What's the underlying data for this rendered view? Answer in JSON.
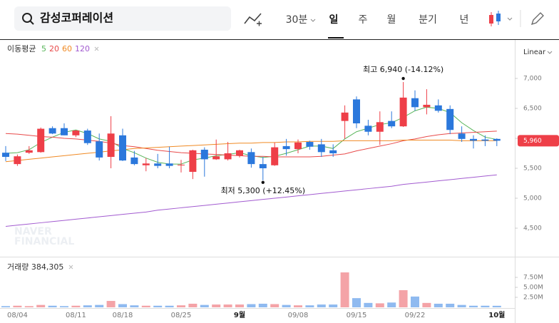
{
  "toolbar": {
    "search": "감성코퍼레이션",
    "intervals": [
      "30분",
      "일",
      "주",
      "월",
      "분기",
      "년"
    ],
    "selected": 1,
    "scale": "Linear"
  },
  "watermark": [
    "NAVER",
    "FINANCIAL"
  ],
  "chart_data": [
    {
      "type": "candlestick",
      "ma_label": "이동평균",
      "categories": [
        null,
        "08/04",
        null,
        null,
        null,
        null,
        "08/11",
        null,
        null,
        null,
        "08/18",
        null,
        null,
        null,
        null,
        "08/25",
        null,
        null,
        null,
        null,
        "9월",
        null,
        null,
        null,
        null,
        "09/08",
        null,
        null,
        null,
        null,
        "09/15",
        null,
        null,
        null,
        null,
        "09/22",
        null,
        null,
        null,
        null,
        null,
        null,
        "10월"
      ],
      "open": [
        5760,
        5570,
        5760,
        5770,
        6170,
        6170,
        6050,
        6130,
        5950,
        5690,
        6050,
        5680,
        5550,
        5580,
        5580,
        5550,
        5440,
        5810,
        5650,
        5650,
        5710,
        5770,
        5570,
        5550,
        5870,
        5820,
        5940,
        5900,
        5800,
        6290,
        6650,
        6210,
        6110,
        6290,
        6200,
        6670,
        6520,
        6550,
        6490,
        6080,
        5990,
        5980,
        5990
      ],
      "high": [
        5870,
        5730,
        5870,
        6180,
        6200,
        6250,
        6140,
        6160,
        6080,
        6370,
        6160,
        5790,
        5670,
        5740,
        5860,
        5640,
        5810,
        5850,
        5980,
        5940,
        5810,
        5830,
        5690,
        5930,
        5990,
        5980,
        5960,
        5990,
        5900,
        6550,
        6700,
        6310,
        6450,
        6450,
        6940,
        6800,
        6820,
        6650,
        6550,
        6200,
        6050,
        6050,
        6000
      ],
      "low": [
        5620,
        5540,
        5740,
        5760,
        6070,
        6050,
        6020,
        5890,
        5630,
        5500,
        5620,
        5550,
        5450,
        5500,
        5500,
        5430,
        5320,
        5360,
        5640,
        5630,
        5680,
        5510,
        5300,
        5540,
        5710,
        5750,
        5810,
        5690,
        5690,
        5990,
        6170,
        6050,
        5890,
        6170,
        6190,
        6460,
        6400,
        6430,
        6070,
        5940,
        5830,
        5870,
        5870
      ],
      "close": [
        5690,
        5700,
        5800,
        6160,
        6080,
        6050,
        6130,
        5920,
        5680,
        6080,
        5630,
        5570,
        5580,
        5540,
        5540,
        5560,
        5800,
        5650,
        5700,
        5750,
        5800,
        5570,
        5500,
        5850,
        5820,
        5930,
        5860,
        5770,
        5750,
        6430,
        6250,
        6110,
        6270,
        6200,
        6680,
        6520,
        6560,
        6460,
        6140,
        5990,
        5960,
        5960,
        5960
      ],
      "up_color": "#ee3f48",
      "down_color": "#2b78dc",
      "series": [
        {
          "name": "5",
          "color": "#58b55a",
          "values": [
            5750,
            5760,
            5810,
            5930,
            6020,
            6100,
            6140,
            6080,
            5990,
            5950,
            5830,
            5760,
            5670,
            5600,
            5570,
            5570,
            5640,
            5670,
            5710,
            5730,
            5760,
            5710,
            5680,
            5700,
            5750,
            5810,
            5870,
            5870,
            5830,
            5990,
            6110,
            6170,
            6230,
            6260,
            6350,
            6460,
            6520,
            6500,
            6430,
            6260,
            6130,
            6020,
            5980
          ]
        },
        {
          "name": "20",
          "color": "#e84a4a",
          "values": [
            6080,
            6070,
            6050,
            6030,
            6020,
            6000,
            5990,
            5970,
            5950,
            5920,
            5880,
            5860,
            5830,
            5800,
            5780,
            5760,
            5750,
            5740,
            5730,
            5720,
            5710,
            5700,
            5700,
            5690,
            5690,
            5690,
            5690,
            5700,
            5720,
            5740,
            5790,
            5830,
            5870,
            5910,
            5960,
            5990,
            6030,
            6060,
            6080,
            6090,
            6100,
            6110,
            6120
          ]
        },
        {
          "name": "60",
          "color": "#f08a24",
          "values": [
            5610,
            5630,
            5650,
            5670,
            5690,
            5710,
            5730,
            5750,
            5770,
            5790,
            5810,
            5830,
            5840,
            5850,
            5860,
            5870,
            5880,
            5890,
            5900,
            5910,
            5920,
            5920,
            5930,
            5930,
            5940,
            5940,
            5950,
            5950,
            5950,
            5960,
            5960,
            5960,
            5960,
            5960,
            5970,
            5970,
            5970,
            5970,
            5970,
            5960,
            5960,
            5960,
            5960
          ]
        },
        {
          "name": "120",
          "color": "#a25bd0",
          "values": [
            4530,
            4550,
            4570,
            4590,
            4610,
            4630,
            4650,
            4670,
            4690,
            4710,
            4730,
            4750,
            4770,
            4800,
            4820,
            4840,
            4860,
            4880,
            4900,
            4920,
            4940,
            4960,
            4980,
            5000,
            5020,
            5040,
            5060,
            5080,
            5100,
            5120,
            5140,
            5160,
            5180,
            5200,
            5230,
            5250,
            5270,
            5290,
            5310,
            5330,
            5350,
            5370,
            5390
          ]
        }
      ],
      "ylim": [
        4200,
        7650
      ],
      "yticks": [
        {
          "value": 7000,
          "label": "7,000"
        },
        {
          "value": 6500,
          "label": "6,500"
        },
        {
          "value": 6000,
          "label": "6,000"
        },
        {
          "value": 5500,
          "label": "5,500"
        },
        {
          "value": 5000,
          "label": "5,000"
        },
        {
          "value": 4500,
          "label": "4,500"
        }
      ],
      "last_price": {
        "value": 5960,
        "label": "5,960"
      },
      "annotations": [
        {
          "text": "최고 6,940 (-14.12%)",
          "value": 6940,
          "index": 34
        },
        {
          "text": "최저 5,300 (+12.45%)",
          "value": 5300,
          "index": 22
        }
      ]
    },
    {
      "type": "bar",
      "title": "거래량 384,305",
      "values": [
        300000,
        400000,
        300000,
        600000,
        400000,
        300000,
        400000,
        500000,
        600000,
        1600000,
        800000,
        500000,
        400000,
        400000,
        400000,
        500000,
        900000,
        600000,
        700000,
        700000,
        700000,
        800000,
        900000,
        800000,
        600000,
        500000,
        500000,
        700000,
        700000,
        8750000,
        2300000,
        1100000,
        1000000,
        1200000,
        4300000,
        2700000,
        1100000,
        900000,
        900000,
        600000,
        400000,
        400000,
        384305
      ],
      "up_color": "#f4a3a7",
      "down_color": "#8fbaf0",
      "ylim": [
        0,
        10900000
      ],
      "yticks": [
        {
          "value": 2500000,
          "label": "2.50M"
        },
        {
          "value": 5000000,
          "label": "5.00M"
        },
        {
          "value": 7500000,
          "label": "7.50M"
        }
      ]
    }
  ]
}
